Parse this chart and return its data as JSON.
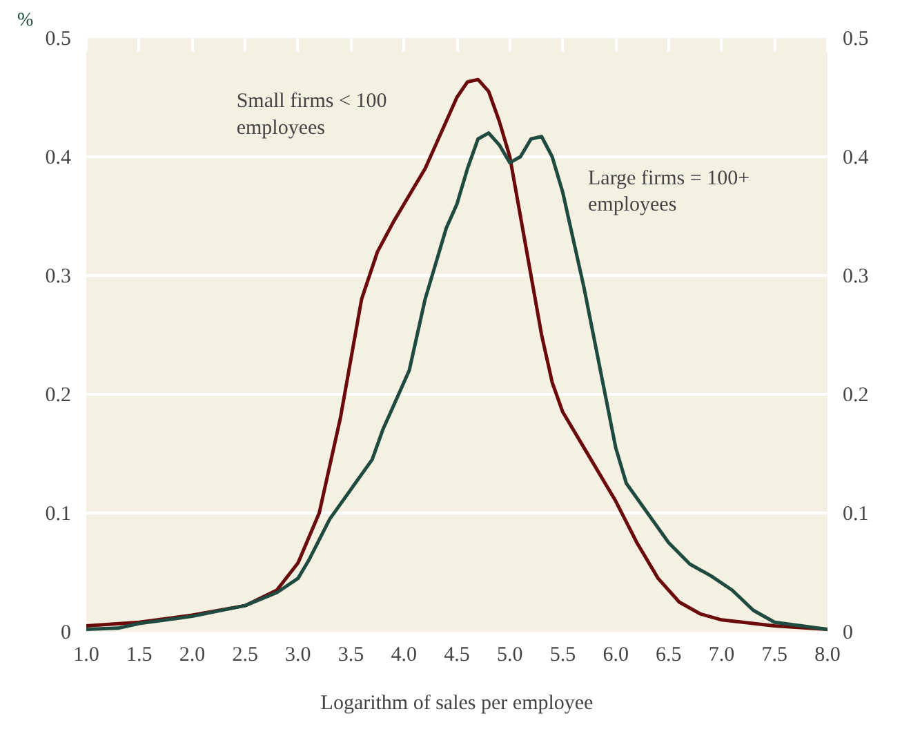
{
  "chart_data": {
    "type": "line",
    "xlabel": "Logarithm of sales per employee",
    "ylabel": "%",
    "xlim": [
      1,
      8
    ],
    "xticks": [
      {
        "value": 1,
        "label": "1.0"
      },
      {
        "value": 1.5,
        "label": "1.5"
      },
      {
        "value": 2,
        "label": "2.0"
      },
      {
        "value": 2.5,
        "label": "2.5"
      },
      {
        "value": 3,
        "label": "3.0"
      },
      {
        "value": 3.5,
        "label": "3.5"
      },
      {
        "value": 4,
        "label": "4.0"
      },
      {
        "value": 4.5,
        "label": "4.5"
      },
      {
        "value": 5,
        "label": "5.0"
      },
      {
        "value": 5.5,
        "label": "5.5"
      },
      {
        "value": 6,
        "label": "6.0"
      },
      {
        "value": 6.5,
        "label": "6.5"
      },
      {
        "value": 7,
        "label": "7.0"
      },
      {
        "value": 7.5,
        "label": "7.5"
      },
      {
        "value": 8,
        "label": "8.0"
      }
    ],
    "ylim": [
      0,
      0.5
    ],
    "yticks": [
      0,
      0.1,
      0.2,
      0.3,
      0.4,
      0.5
    ],
    "y2lim": [
      0,
      0.5
    ],
    "y2ticks": [
      0,
      0.1,
      0.2,
      0.3,
      0.4,
      0.5
    ],
    "grid": "y",
    "line_style": "solid",
    "marker": "none",
    "series": [
      {
        "name": "Small firms < 100\nemployees",
        "color": "#6b0a0a",
        "x": [
          1.0,
          1.5,
          2.0,
          2.5,
          2.8,
          3.0,
          3.2,
          3.4,
          3.6,
          3.75,
          3.9,
          4.0,
          4.2,
          4.4,
          4.5,
          4.6,
          4.7,
          4.8,
          4.9,
          5.0,
          5.1,
          5.2,
          5.3,
          5.4,
          5.5,
          5.7,
          6.0,
          6.2,
          6.4,
          6.6,
          6.8,
          7.0,
          7.5,
          8.0
        ],
        "values": [
          0.005,
          0.008,
          0.014,
          0.022,
          0.035,
          0.058,
          0.1,
          0.18,
          0.28,
          0.32,
          0.345,
          0.36,
          0.39,
          0.43,
          0.45,
          0.463,
          0.465,
          0.455,
          0.43,
          0.4,
          0.35,
          0.3,
          0.25,
          0.21,
          0.185,
          0.155,
          0.11,
          0.075,
          0.045,
          0.025,
          0.015,
          0.01,
          0.005,
          0.002
        ]
      },
      {
        "name": "Large firms = 100+\nemployees",
        "color": "#1f4a3f",
        "x": [
          1.0,
          1.3,
          1.5,
          2.0,
          2.5,
          2.8,
          3.0,
          3.1,
          3.3,
          3.5,
          3.7,
          3.8,
          3.9,
          4.05,
          4.2,
          4.4,
          4.5,
          4.6,
          4.7,
          4.8,
          4.9,
          5.0,
          5.1,
          5.2,
          5.3,
          5.4,
          5.5,
          5.7,
          5.9,
          6.0,
          6.1,
          6.3,
          6.5,
          6.7,
          6.9,
          7.1,
          7.3,
          7.5,
          8.0
        ],
        "values": [
          0.002,
          0.003,
          0.007,
          0.013,
          0.022,
          0.033,
          0.045,
          0.06,
          0.095,
          0.12,
          0.145,
          0.17,
          0.19,
          0.22,
          0.28,
          0.34,
          0.36,
          0.39,
          0.415,
          0.42,
          0.41,
          0.395,
          0.4,
          0.415,
          0.417,
          0.4,
          0.37,
          0.29,
          0.2,
          0.155,
          0.125,
          0.1,
          0.075,
          0.057,
          0.047,
          0.035,
          0.018,
          0.008,
          0.002
        ]
      }
    ]
  }
}
